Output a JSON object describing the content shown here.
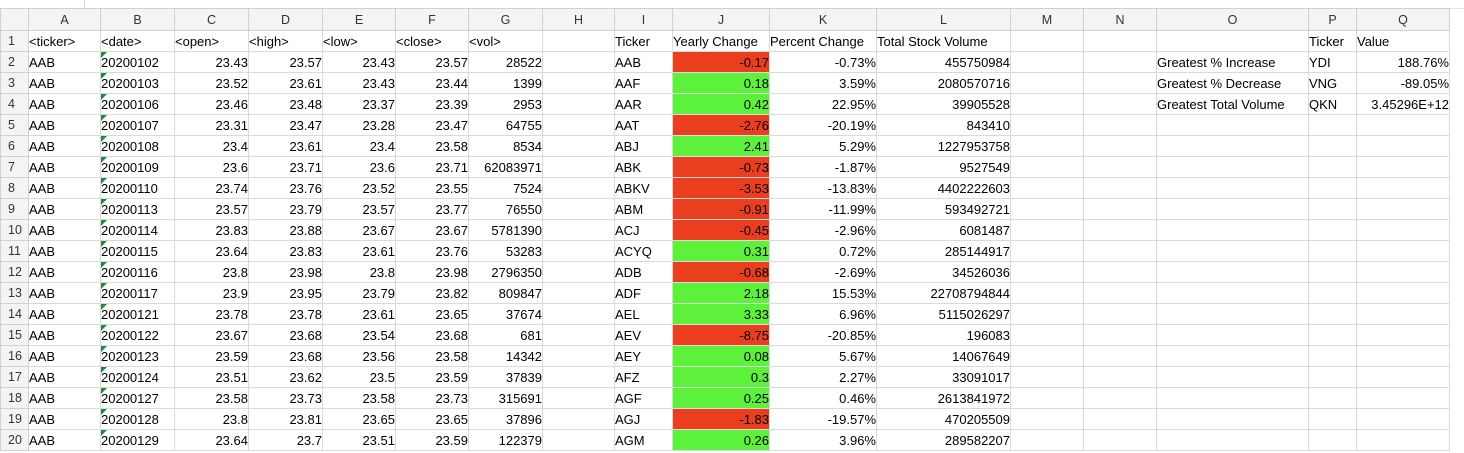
{
  "column_letters": [
    "A",
    "B",
    "C",
    "D",
    "E",
    "F",
    "G",
    "H",
    "I",
    "J",
    "K",
    "L",
    "M",
    "N",
    "O",
    "P",
    "Q"
  ],
  "header_row": {
    "ticker": "<ticker>",
    "date": "<date>",
    "open": "<open>",
    "high": "<high>",
    "low": "<low>",
    "close": "<close>",
    "vol": "<vol>",
    "summary_ticker": "Ticker",
    "yearly_change": "Yearly Change",
    "percent_change": "Percent Change",
    "total_volume": "Total Stock Volume",
    "result_ticker": "Ticker",
    "result_value": "Value"
  },
  "data_rows": [
    {
      "ticker": "AAB",
      "date": "20200102",
      "open": "23.43",
      "high": "23.57",
      "low": "23.43",
      "close": "23.57",
      "vol": "28522"
    },
    {
      "ticker": "AAB",
      "date": "20200103",
      "open": "23.52",
      "high": "23.61",
      "low": "23.43",
      "close": "23.44",
      "vol": "1399"
    },
    {
      "ticker": "AAB",
      "date": "20200106",
      "open": "23.46",
      "high": "23.48",
      "low": "23.37",
      "close": "23.39",
      "vol": "2953"
    },
    {
      "ticker": "AAB",
      "date": "20200107",
      "open": "23.31",
      "high": "23.47",
      "low": "23.28",
      "close": "23.47",
      "vol": "64755"
    },
    {
      "ticker": "AAB",
      "date": "20200108",
      "open": "23.4",
      "high": "23.61",
      "low": "23.4",
      "close": "23.58",
      "vol": "8534"
    },
    {
      "ticker": "AAB",
      "date": "20200109",
      "open": "23.6",
      "high": "23.71",
      "low": "23.6",
      "close": "23.71",
      "vol": "62083971"
    },
    {
      "ticker": "AAB",
      "date": "20200110",
      "open": "23.74",
      "high": "23.76",
      "low": "23.52",
      "close": "23.55",
      "vol": "7524"
    },
    {
      "ticker": "AAB",
      "date": "20200113",
      "open": "23.57",
      "high": "23.79",
      "low": "23.57",
      "close": "23.77",
      "vol": "76550"
    },
    {
      "ticker": "AAB",
      "date": "20200114",
      "open": "23.83",
      "high": "23.88",
      "low": "23.67",
      "close": "23.67",
      "vol": "5781390"
    },
    {
      "ticker": "AAB",
      "date": "20200115",
      "open": "23.64",
      "high": "23.83",
      "low": "23.61",
      "close": "23.76",
      "vol": "53283"
    },
    {
      "ticker": "AAB",
      "date": "20200116",
      "open": "23.8",
      "high": "23.98",
      "low": "23.8",
      "close": "23.98",
      "vol": "2796350"
    },
    {
      "ticker": "AAB",
      "date": "20200117",
      "open": "23.9",
      "high": "23.95",
      "low": "23.79",
      "close": "23.82",
      "vol": "809847"
    },
    {
      "ticker": "AAB",
      "date": "20200121",
      "open": "23.78",
      "high": "23.78",
      "low": "23.61",
      "close": "23.65",
      "vol": "37674"
    },
    {
      "ticker": "AAB",
      "date": "20200122",
      "open": "23.67",
      "high": "23.68",
      "low": "23.54",
      "close": "23.68",
      "vol": "681"
    },
    {
      "ticker": "AAB",
      "date": "20200123",
      "open": "23.59",
      "high": "23.68",
      "low": "23.56",
      "close": "23.58",
      "vol": "14342"
    },
    {
      "ticker": "AAB",
      "date": "20200124",
      "open": "23.51",
      "high": "23.62",
      "low": "23.5",
      "close": "23.59",
      "vol": "37839"
    },
    {
      "ticker": "AAB",
      "date": "20200127",
      "open": "23.58",
      "high": "23.73",
      "low": "23.58",
      "close": "23.73",
      "vol": "315691"
    },
    {
      "ticker": "AAB",
      "date": "20200128",
      "open": "23.8",
      "high": "23.81",
      "low": "23.65",
      "close": "23.65",
      "vol": "37896"
    },
    {
      "ticker": "AAB",
      "date": "20200129",
      "open": "23.64",
      "high": "23.7",
      "low": "23.51",
      "close": "23.59",
      "vol": "122379"
    }
  ],
  "summary_rows": [
    {
      "ticker": "AAB",
      "yearly_change": "-0.17",
      "direction": "negative",
      "percent": "-0.73%",
      "volume": "455750984"
    },
    {
      "ticker": "AAF",
      "yearly_change": "0.18",
      "direction": "positive",
      "percent": "3.59%",
      "volume": "2080570716"
    },
    {
      "ticker": "AAR",
      "yearly_change": "0.42",
      "direction": "positive",
      "percent": "22.95%",
      "volume": "39905528"
    },
    {
      "ticker": "AAT",
      "yearly_change": "-2.76",
      "direction": "negative",
      "percent": "-20.19%",
      "volume": "843410"
    },
    {
      "ticker": "ABJ",
      "yearly_change": "2.41",
      "direction": "positive",
      "percent": "5.29%",
      "volume": "1227953758"
    },
    {
      "ticker": "ABK",
      "yearly_change": "-0.73",
      "direction": "negative",
      "percent": "-1.87%",
      "volume": "9527549"
    },
    {
      "ticker": "ABKV",
      "yearly_change": "-3.53",
      "direction": "negative",
      "percent": "-13.83%",
      "volume": "4402222603"
    },
    {
      "ticker": "ABM",
      "yearly_change": "-0.91",
      "direction": "negative",
      "percent": "-11.99%",
      "volume": "593492721"
    },
    {
      "ticker": "ACJ",
      "yearly_change": "-0.45",
      "direction": "negative",
      "percent": "-2.96%",
      "volume": "6081487"
    },
    {
      "ticker": "ACYQ",
      "yearly_change": "0.31",
      "direction": "positive",
      "percent": "0.72%",
      "volume": "285144917"
    },
    {
      "ticker": "ADB",
      "yearly_change": "-0.68",
      "direction": "negative",
      "percent": "-2.69%",
      "volume": "34526036"
    },
    {
      "ticker": "ADF",
      "yearly_change": "2.18",
      "direction": "positive",
      "percent": "15.53%",
      "volume": "22708794844"
    },
    {
      "ticker": "AEL",
      "yearly_change": "3.33",
      "direction": "positive",
      "percent": "6.96%",
      "volume": "5115026297"
    },
    {
      "ticker": "AEV",
      "yearly_change": "-8.75",
      "direction": "negative",
      "percent": "-20.85%",
      "volume": "196083"
    },
    {
      "ticker": "AEY",
      "yearly_change": "0.08",
      "direction": "positive",
      "percent": "5.67%",
      "volume": "14067649"
    },
    {
      "ticker": "AFZ",
      "yearly_change": "0.3",
      "direction": "positive",
      "percent": "2.27%",
      "volume": "33091017"
    },
    {
      "ticker": "AGF",
      "yearly_change": "0.25",
      "direction": "positive",
      "percent": "0.46%",
      "volume": "2613841972"
    },
    {
      "ticker": "AGJ",
      "yearly_change": "-1.83",
      "direction": "negative",
      "percent": "-19.57%",
      "volume": "470205509"
    },
    {
      "ticker": "AGM",
      "yearly_change": "0.26",
      "direction": "positive",
      "percent": "3.96%",
      "volume": "289582207"
    }
  ],
  "results": [
    {
      "label": "Greatest % Increase",
      "ticker": "YDI",
      "value": "188.76%"
    },
    {
      "label": "Greatest % Decrease",
      "ticker": "VNG",
      "value": "-89.05%"
    },
    {
      "label": "Greatest Total Volume",
      "ticker": "QKN",
      "value": "3.45296E+12"
    }
  ],
  "colors": {
    "positive_fill": "#5cf23c",
    "negative_fill": "#ea3e1f",
    "date_marker": "#1f8a3c",
    "header_bg": "#f4f4f4",
    "gridline": "#dadada"
  }
}
